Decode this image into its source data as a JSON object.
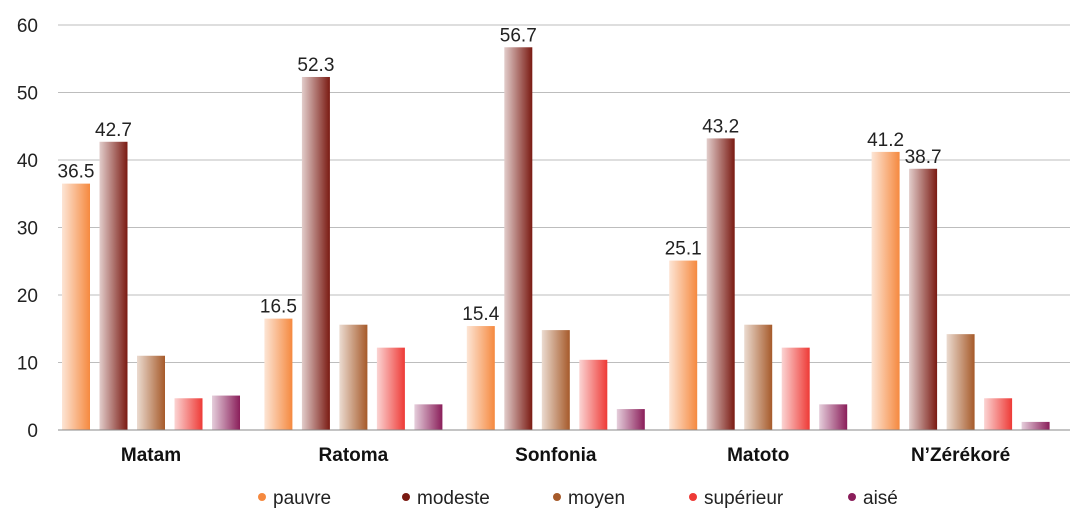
{
  "chart_data": {
    "type": "bar",
    "title": "",
    "xlabel": "",
    "ylabel": "",
    "ylim": [
      0,
      60
    ],
    "yticks": [
      "0",
      "10",
      "20",
      "30",
      "40",
      "50",
      "60"
    ],
    "grid": true,
    "legend_position": "bottom",
    "categories": [
      "Matam",
      "Ratoma",
      "Sonfonia",
      "Matoto",
      "N’Zérékoré"
    ],
    "series": [
      {
        "name": "pauvre",
        "color": "#f5893f",
        "values": [
          36.5,
          16.5,
          15.4,
          25.1,
          41.2
        ],
        "labels": [
          "36.5",
          "16.5",
          "15.4",
          "25.1",
          "41.2"
        ]
      },
      {
        "name": "modeste",
        "color": "#7a1a12",
        "values": [
          42.7,
          52.3,
          56.7,
          43.2,
          38.7
        ],
        "labels": [
          "42.7",
          "52.3",
          "56.7",
          "43.2",
          "38.7"
        ]
      },
      {
        "name": "moyen",
        "color": "#a65a2a",
        "values": [
          11.0,
          15.6,
          14.8,
          15.6,
          14.2
        ],
        "labels": [
          "",
          "",
          "",
          "",
          ""
        ]
      },
      {
        "name": "supérieur",
        "color": "#ee3a36",
        "values": [
          4.7,
          12.2,
          10.4,
          12.2,
          4.7
        ],
        "labels": [
          "",
          "",
          "",
          "",
          ""
        ]
      },
      {
        "name": "aisé",
        "color": "#8a1e5a",
        "values": [
          5.1,
          3.8,
          3.1,
          3.8,
          1.2
        ],
        "labels": [
          "",
          "",
          "",
          "",
          ""
        ]
      }
    ]
  }
}
